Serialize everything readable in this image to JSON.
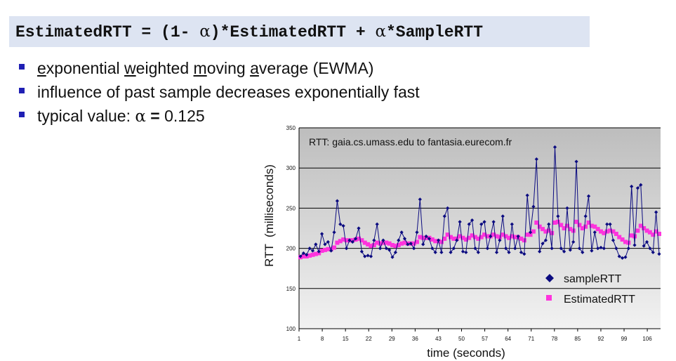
{
  "formula": {
    "part1": "EstimatedRTT = (1- ",
    "alpha1": "α",
    "part2": ")*EstimatedRTT + ",
    "alpha2": "α",
    "part3": "*SampleRTT"
  },
  "bullets": [
    {
      "parts": [
        {
          "t": "e",
          "u": true
        },
        {
          "t": "xponential ",
          "u": false
        },
        {
          "t": "w",
          "u": true
        },
        {
          "t": "eighted ",
          "u": false
        },
        {
          "t": "m",
          "u": true
        },
        {
          "t": "oving ",
          "u": false
        },
        {
          "t": "a",
          "u": true
        },
        {
          "t": "verage (EWMA)",
          "u": false
        }
      ]
    },
    {
      "text": "influence of past sample decreases exponentially fast"
    },
    {
      "prefix": "typical value: ",
      "alpha": "α",
      "bold": " = ",
      "suffix": "0.125"
    }
  ],
  "colors": {
    "bullet": "#1f1fb4",
    "sample": "#0b0b80",
    "estimated": "#ff33dd",
    "formula_bg": "#dde4f2"
  },
  "chart_data": {
    "type": "line",
    "title": "RTT: gaia.cs.umass.edu to fantasia.eurecom.fr",
    "xlabel": "time (seconds)",
    "ylabel": "RTT  (milliseconds)",
    "ylim": [
      100,
      350
    ],
    "yticks": [
      100,
      150,
      200,
      250,
      300,
      350
    ],
    "xlim": [
      1,
      110
    ],
    "xticks": [
      1,
      8,
      15,
      22,
      29,
      36,
      43,
      50,
      57,
      64,
      71,
      78,
      85,
      92,
      99,
      106
    ],
    "grid": true,
    "legend": "bottom-right",
    "series": [
      {
        "name": "sampleRTT",
        "marker": "diamond",
        "values": [
          190,
          194,
          192,
          200,
          197,
          205,
          196,
          218,
          205,
          208,
          197,
          220,
          259,
          230,
          228,
          200,
          210,
          208,
          212,
          225,
          196,
          190,
          191,
          190,
          210,
          230,
          200,
          210,
          200,
          198,
          189,
          195,
          210,
          220,
          212,
          205,
          206,
          200,
          220,
          261,
          205,
          215,
          212,
          200,
          195,
          210,
          195,
          240,
          250,
          195,
          200,
          210,
          233,
          196,
          195,
          230,
          235,
          200,
          195,
          230,
          233,
          200,
          215,
          233,
          195,
          210,
          240,
          200,
          195,
          230,
          200,
          215,
          195,
          193,
          266,
          220,
          252,
          311,
          196,
          206,
          210,
          230,
          200,
          326,
          240,
          200,
          196,
          250,
          198,
          208,
          308,
          200,
          195,
          240,
          265,
          197,
          220,
          200,
          201,
          200,
          230,
          230,
          210,
          200,
          190,
          188,
          189,
          200,
          277,
          204,
          275,
          279,
          203,
          208,
          200,
          195,
          245,
          193
        ]
      },
      {
        "name": "EstimatedRTT",
        "marker": "square",
        "values": [
          189,
          190,
          190,
          191,
          192,
          193,
          194,
          197,
          198,
          199,
          199,
          201,
          207,
          209,
          211,
          210,
          210,
          210,
          211,
          212,
          210,
          207,
          205,
          203,
          204,
          207,
          206,
          207,
          207,
          206,
          204,
          203,
          204,
          206,
          207,
          206,
          206,
          206,
          208,
          214,
          213,
          213,
          213,
          211,
          209,
          209,
          208,
          212,
          217,
          214,
          212,
          212,
          215,
          213,
          211,
          213,
          216,
          214,
          212,
          214,
          217,
          215,
          215,
          217,
          215,
          214,
          217,
          215,
          213,
          215,
          214,
          214,
          212,
          210,
          217,
          217,
          221,
          232,
          227,
          224,
          221,
          222,
          219,
          232,
          233,
          229,
          225,
          228,
          224,
          222,
          233,
          229,
          225,
          227,
          232,
          228,
          227,
          224,
          221,
          219,
          221,
          222,
          221,
          218,
          214,
          211,
          208,
          207,
          216,
          215,
          222,
          228,
          225,
          222,
          220,
          217,
          221,
          218
        ]
      }
    ]
  }
}
